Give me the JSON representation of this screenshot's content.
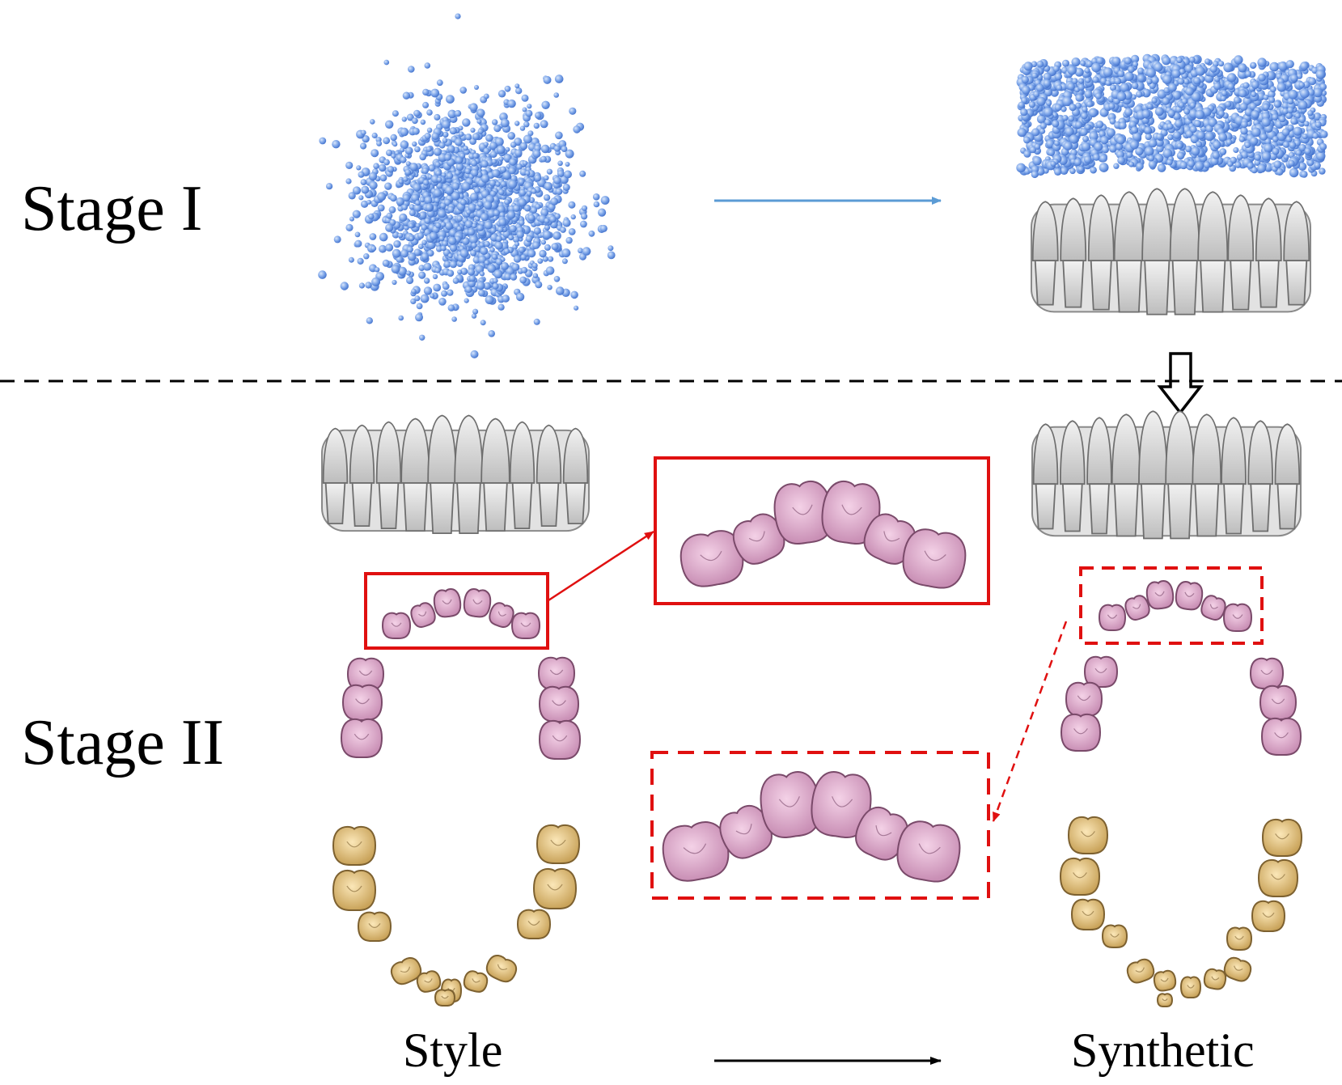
{
  "labels": {
    "stage1": "Stage I",
    "stage2": "Stage II",
    "style": "Style",
    "synthetic": "Synthetic"
  },
  "colors": {
    "point_cloud": "#6f9be6",
    "point_cloud_dark": "#3f6fd6",
    "tooth_gray": "#d9d9d9",
    "tooth_outline": "#6e6e6e",
    "tooth_pink": "#e6b3d3",
    "tooth_pink_outline": "#7a4a6a",
    "tooth_gold": "#ecd49a",
    "tooth_gold_outline": "#7d6130",
    "highlight_red": "#e01010",
    "arrow_blue": "#5b9bd5",
    "arrow_black": "#000000",
    "divider": "#000000"
  },
  "icons": [
    "noise-point-cloud",
    "denoised-point-cloud",
    "tooth-mesh",
    "hollow-down-arrow"
  ]
}
